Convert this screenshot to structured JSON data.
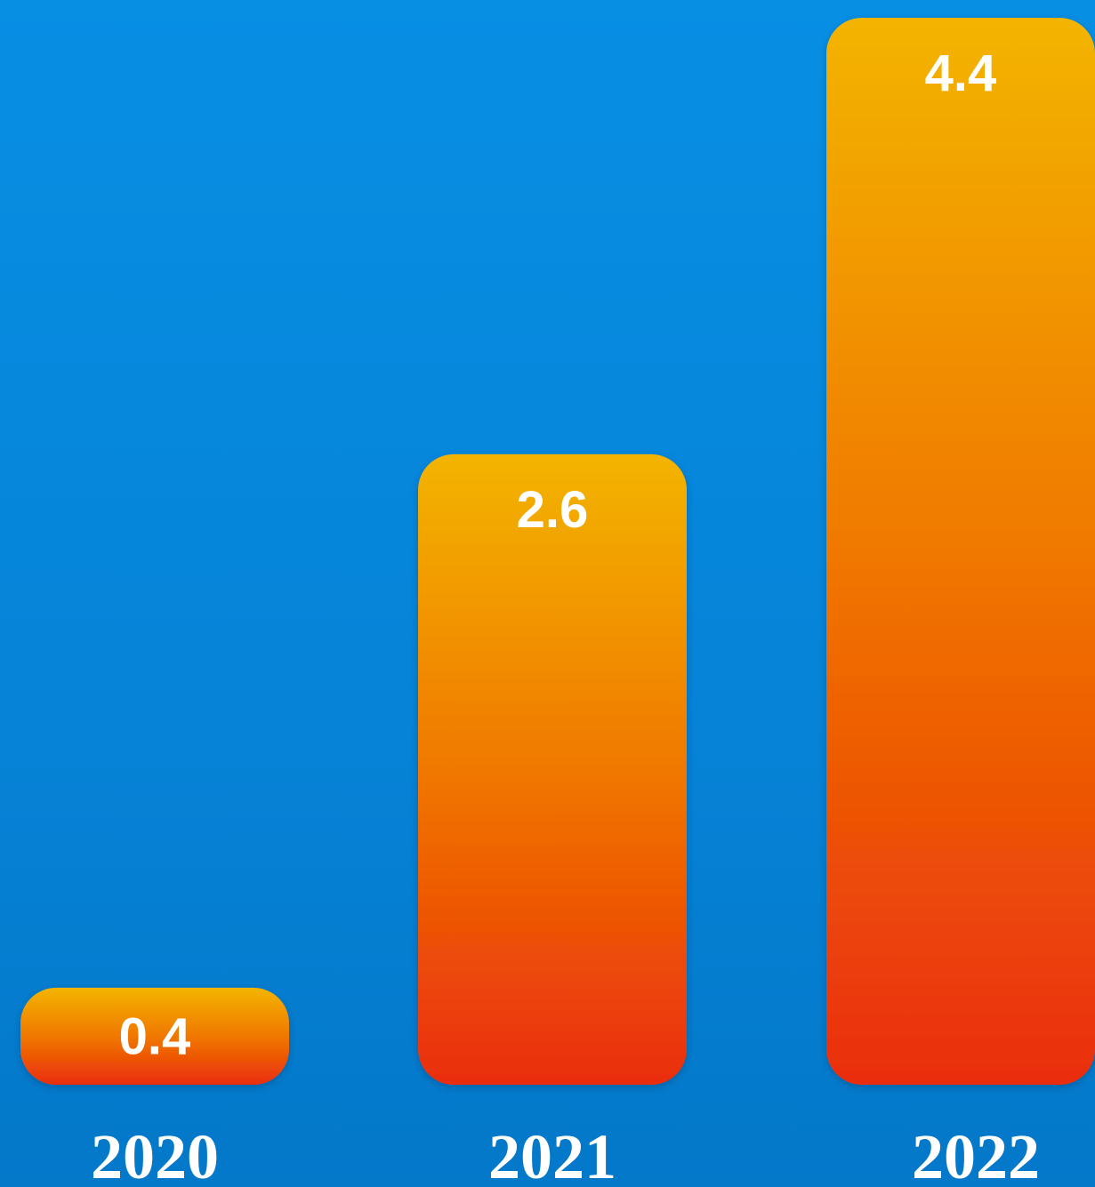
{
  "chart_data": {
    "type": "bar",
    "categories": [
      "2020",
      "2021",
      "2022"
    ],
    "values": [
      0.4,
      2.6,
      4.4
    ],
    "value_labels": [
      "0.4",
      "2.6",
      "4.4"
    ],
    "title": "",
    "xlabel": "",
    "ylabel": "",
    "ylim": [
      0,
      4.4
    ],
    "grid": false,
    "legend": "none",
    "colors": {
      "background": "#0688de",
      "bar_top": "#f3b400",
      "bar_bottom": "#ea2d0c",
      "label": "#ffffff"
    }
  }
}
